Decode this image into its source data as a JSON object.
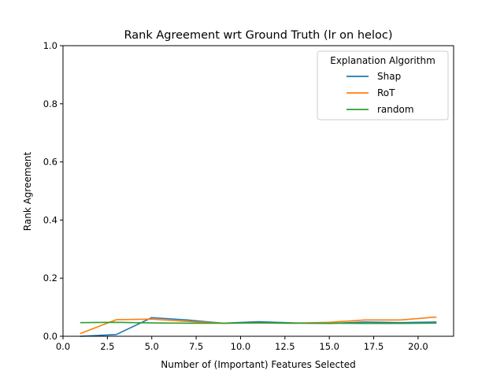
{
  "chart_data": {
    "type": "line",
    "title": "Rank Agreement wrt Ground Truth (lr on heloc)",
    "xlabel": "Number of (Important) Features Selected",
    "ylabel": "Rank Agreement",
    "xlim": [
      0.0,
      22.0
    ],
    "ylim": [
      0.0,
      1.0
    ],
    "xticks": [
      0.0,
      2.5,
      5.0,
      7.5,
      10.0,
      12.5,
      15.0,
      17.5,
      20.0
    ],
    "xtick_labels": [
      "0.0",
      "2.5",
      "5.0",
      "7.5",
      "10.0",
      "12.5",
      "15.0",
      "17.5",
      "20.0"
    ],
    "yticks": [
      0.0,
      0.2,
      0.4,
      0.6,
      0.8,
      1.0
    ],
    "ytick_labels": [
      "0.0",
      "0.2",
      "0.4",
      "0.6",
      "0.8",
      "1.0"
    ],
    "grid": false,
    "legend": {
      "title": "Explanation Algorithm",
      "placement": "upper right"
    },
    "x": [
      1,
      3,
      5,
      7,
      9,
      11,
      13,
      15,
      17,
      19,
      21
    ],
    "series": [
      {
        "name": "Shap",
        "color": "#1f77b4",
        "values": [
          0.0,
          0.006,
          0.064,
          0.056,
          0.045,
          0.05,
          0.046,
          0.044,
          0.049,
          0.047,
          0.049
        ]
      },
      {
        "name": "RoT",
        "color": "#ff7f0e",
        "values": [
          0.01,
          0.057,
          0.059,
          0.051,
          0.045,
          0.046,
          0.045,
          0.048,
          0.056,
          0.056,
          0.066
        ]
      },
      {
        "name": "random",
        "color": "#2ca02c",
        "values": [
          0.047,
          0.048,
          0.046,
          0.045,
          0.045,
          0.046,
          0.045,
          0.045,
          0.044,
          0.044,
          0.045
        ]
      }
    ]
  }
}
